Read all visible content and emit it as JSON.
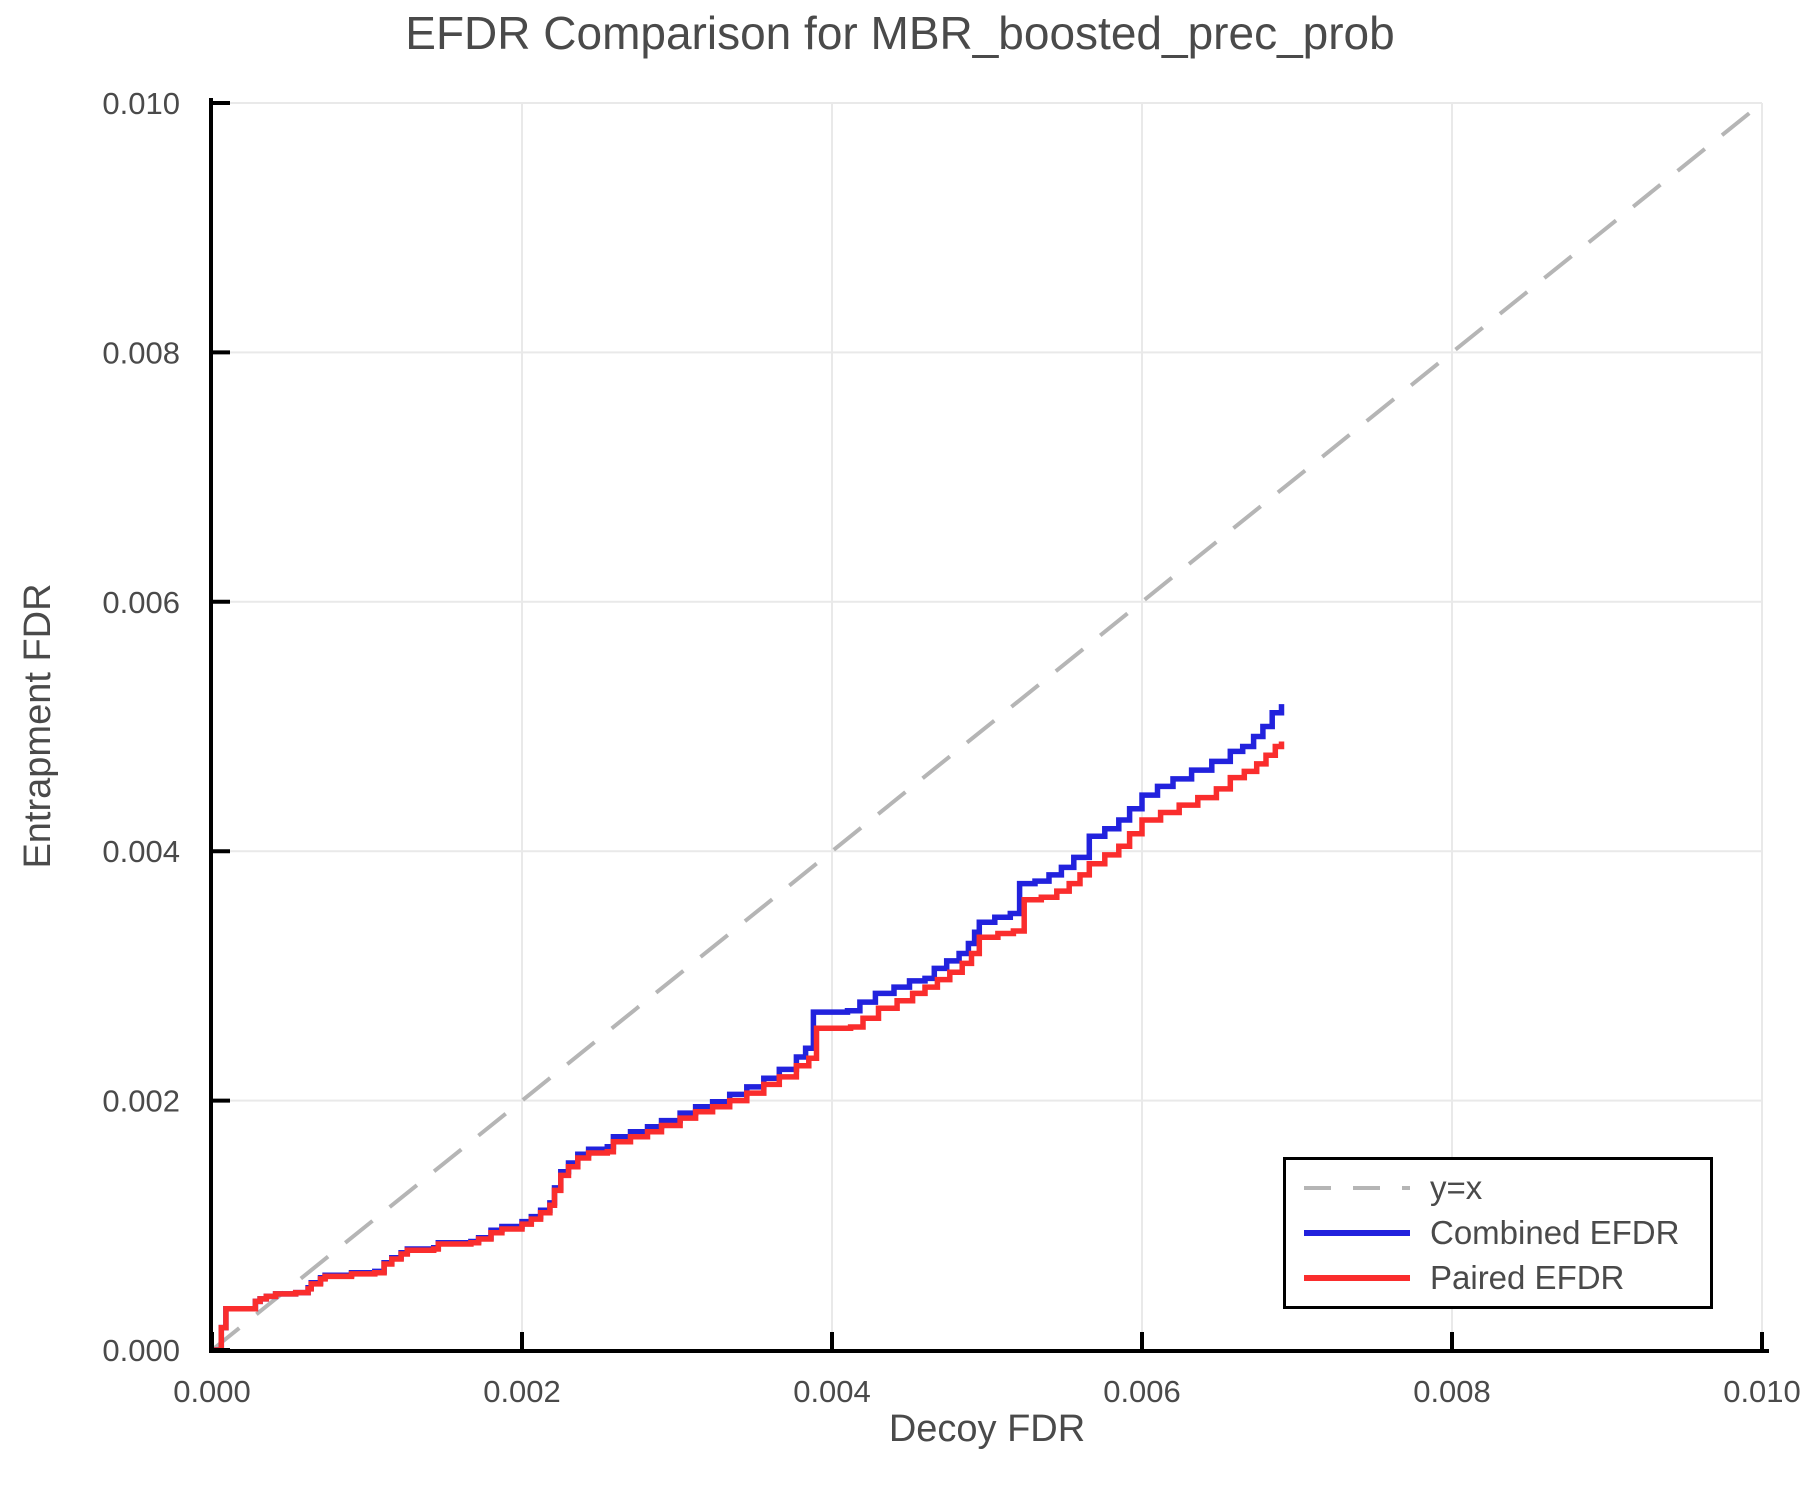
{
  "chart_data": {
    "type": "line",
    "title": "EFDR Comparison for MBR_boosted_prec_prob",
    "xlabel": "Decoy FDR",
    "ylabel": "Entrapment FDR",
    "xlim": [
      0.0,
      0.01
    ],
    "ylim": [
      0.0,
      0.01
    ],
    "x_ticks": [
      0.0,
      0.002,
      0.004,
      0.006,
      0.008,
      0.01
    ],
    "x_tick_labels": [
      "0.000",
      "0.002",
      "0.004",
      "0.006",
      "0.008",
      "0.010"
    ],
    "y_ticks": [
      0.0,
      0.002,
      0.004,
      0.006,
      0.008,
      0.01
    ],
    "y_tick_labels": [
      "0.000",
      "0.002",
      "0.004",
      "0.006",
      "0.008",
      "0.010"
    ],
    "grid": true,
    "grid_color": "#e9e9e9",
    "axis_color": "#000000",
    "tick_label_color": "#4a4a4a",
    "legend_position": "lower right",
    "reference_line": {
      "label": "y=x",
      "style": "dashed",
      "color": "#b5b5b5",
      "from": [
        0.0,
        0.0
      ],
      "to": [
        0.01,
        0.01
      ]
    },
    "series": [
      {
        "name": "Combined EFDR",
        "color": "#2222dd",
        "style": "step",
        "points": [
          [
            0.0,
            0.0
          ],
          [
            6e-05,
            0.0
          ],
          [
            6e-05,
            0.00018
          ],
          [
            9e-05,
            0.00018
          ],
          [
            9e-05,
            0.00033
          ],
          [
            0.00026,
            0.00033
          ],
          [
            0.00028,
            0.00039
          ],
          [
            0.00031,
            0.00041
          ],
          [
            0.00035,
            0.00043
          ],
          [
            0.00041,
            0.00045
          ],
          [
            0.00054,
            0.00046
          ],
          [
            0.00062,
            0.0005
          ],
          [
            0.00064,
            0.00054
          ],
          [
            0.0007,
            0.00058
          ],
          [
            0.00073,
            0.0006
          ],
          [
            0.0009,
            0.00062
          ],
          [
            0.00105,
            0.00063
          ],
          [
            0.00111,
            0.0007
          ],
          [
            0.00116,
            0.00074
          ],
          [
            0.00122,
            0.00078
          ],
          [
            0.00126,
            0.00081
          ],
          [
            0.00143,
            0.00082
          ],
          [
            0.00146,
            0.00086
          ],
          [
            0.00167,
            0.00087
          ],
          [
            0.00172,
            0.0009
          ],
          [
            0.0018,
            0.00096
          ],
          [
            0.00187,
            0.00099
          ],
          [
            0.002,
            0.00103
          ],
          [
            0.00206,
            0.00107
          ],
          [
            0.00212,
            0.00112
          ],
          [
            0.00218,
            0.00118
          ],
          [
            0.00221,
            0.0013
          ],
          [
            0.00225,
            0.00143
          ],
          [
            0.0023,
            0.0015
          ],
          [
            0.00236,
            0.00157
          ],
          [
            0.00243,
            0.00161
          ],
          [
            0.00255,
            0.00163
          ],
          [
            0.00259,
            0.00171
          ],
          [
            0.0027,
            0.00175
          ],
          [
            0.00281,
            0.00179
          ],
          [
            0.0029,
            0.00184
          ],
          [
            0.00302,
            0.0019
          ],
          [
            0.00312,
            0.00195
          ],
          [
            0.00323,
            0.00199
          ],
          [
            0.00334,
            0.00205
          ],
          [
            0.00345,
            0.00211
          ],
          [
            0.00356,
            0.00218
          ],
          [
            0.00366,
            0.00225
          ],
          [
            0.00377,
            0.00235
          ],
          [
            0.00383,
            0.00242
          ],
          [
            0.00388,
            0.00271
          ],
          [
            0.0041,
            0.00272
          ],
          [
            0.00418,
            0.00279
          ],
          [
            0.00428,
            0.00286
          ],
          [
            0.0044,
            0.00291
          ],
          [
            0.0045,
            0.00296
          ],
          [
            0.0046,
            0.00298
          ],
          [
            0.00466,
            0.00306
          ],
          [
            0.00474,
            0.00312
          ],
          [
            0.00482,
            0.00318
          ],
          [
            0.00488,
            0.00326
          ],
          [
            0.00492,
            0.00335
          ],
          [
            0.00495,
            0.00343
          ],
          [
            0.00505,
            0.00347
          ],
          [
            0.00515,
            0.0035
          ],
          [
            0.00521,
            0.00374
          ],
          [
            0.00531,
            0.00376
          ],
          [
            0.0054,
            0.00381
          ],
          [
            0.00548,
            0.00387
          ],
          [
            0.00556,
            0.00395
          ],
          [
            0.00566,
            0.00412
          ],
          [
            0.00576,
            0.00418
          ],
          [
            0.00585,
            0.00425
          ],
          [
            0.00592,
            0.00434
          ],
          [
            0.006,
            0.00445
          ],
          [
            0.0061,
            0.00452
          ],
          [
            0.0062,
            0.00458
          ],
          [
            0.00632,
            0.00465
          ],
          [
            0.00645,
            0.00472
          ],
          [
            0.00657,
            0.0048
          ],
          [
            0.00665,
            0.00484
          ],
          [
            0.00672,
            0.00492
          ],
          [
            0.00678,
            0.005
          ],
          [
            0.00684,
            0.00511
          ],
          [
            0.0069,
            0.00518
          ]
        ]
      },
      {
        "name": "Paired EFDR",
        "color": "#fa2d2d",
        "style": "step",
        "points": [
          [
            0.0,
            0.0
          ],
          [
            6e-05,
            0.0
          ],
          [
            6e-05,
            0.00018
          ],
          [
            9e-05,
            0.00018
          ],
          [
            9e-05,
            0.00033
          ],
          [
            0.00026,
            0.00033
          ],
          [
            0.00028,
            0.00039
          ],
          [
            0.00031,
            0.00041
          ],
          [
            0.00035,
            0.00043
          ],
          [
            0.00041,
            0.00045
          ],
          [
            0.00054,
            0.00046
          ],
          [
            0.00062,
            0.00049
          ],
          [
            0.00064,
            0.00053
          ],
          [
            0.0007,
            0.00057
          ],
          [
            0.00073,
            0.00059
          ],
          [
            0.0009,
            0.00061
          ],
          [
            0.00105,
            0.00062
          ],
          [
            0.00111,
            0.00069
          ],
          [
            0.00116,
            0.00073
          ],
          [
            0.00122,
            0.00077
          ],
          [
            0.00126,
            0.0008
          ],
          [
            0.00143,
            0.00081
          ],
          [
            0.00146,
            0.00085
          ],
          [
            0.00167,
            0.00086
          ],
          [
            0.00172,
            0.00089
          ],
          [
            0.0018,
            0.00094
          ],
          [
            0.00187,
            0.00097
          ],
          [
            0.002,
            0.00101
          ],
          [
            0.00206,
            0.00105
          ],
          [
            0.00212,
            0.0011
          ],
          [
            0.00218,
            0.00116
          ],
          [
            0.00221,
            0.00128
          ],
          [
            0.00225,
            0.0014
          ],
          [
            0.0023,
            0.00147
          ],
          [
            0.00236,
            0.00154
          ],
          [
            0.00243,
            0.00158
          ],
          [
            0.00255,
            0.00159
          ],
          [
            0.00259,
            0.00167
          ],
          [
            0.0027,
            0.00171
          ],
          [
            0.00281,
            0.00175
          ],
          [
            0.0029,
            0.0018
          ],
          [
            0.00302,
            0.00186
          ],
          [
            0.00312,
            0.00191
          ],
          [
            0.00323,
            0.00195
          ],
          [
            0.00334,
            0.002
          ],
          [
            0.00345,
            0.00206
          ],
          [
            0.00356,
            0.00213
          ],
          [
            0.00366,
            0.00219
          ],
          [
            0.00377,
            0.00228
          ],
          [
            0.00385,
            0.00234
          ],
          [
            0.0039,
            0.00258
          ],
          [
            0.00412,
            0.00259
          ],
          [
            0.0042,
            0.00266
          ],
          [
            0.0043,
            0.00274
          ],
          [
            0.00442,
            0.0028
          ],
          [
            0.00452,
            0.00286
          ],
          [
            0.0046,
            0.00291
          ],
          [
            0.00468,
            0.00297
          ],
          [
            0.00476,
            0.00303
          ],
          [
            0.00484,
            0.0031
          ],
          [
            0.0049,
            0.00318
          ],
          [
            0.00495,
            0.00331
          ],
          [
            0.00507,
            0.00334
          ],
          [
            0.00517,
            0.00336
          ],
          [
            0.00524,
            0.00361
          ],
          [
            0.00535,
            0.00363
          ],
          [
            0.00545,
            0.00368
          ],
          [
            0.00553,
            0.00374
          ],
          [
            0.0056,
            0.00381
          ],
          [
            0.00566,
            0.0039
          ],
          [
            0.00576,
            0.00397
          ],
          [
            0.00585,
            0.00404
          ],
          [
            0.00592,
            0.00414
          ],
          [
            0.006,
            0.00425
          ],
          [
            0.00612,
            0.00431
          ],
          [
            0.00624,
            0.00437
          ],
          [
            0.00636,
            0.00443
          ],
          [
            0.00648,
            0.0045
          ],
          [
            0.00657,
            0.00459
          ],
          [
            0.00666,
            0.00464
          ],
          [
            0.00674,
            0.0047
          ],
          [
            0.0068,
            0.00477
          ],
          [
            0.00686,
            0.00484
          ],
          [
            0.0069,
            0.00488
          ]
        ]
      }
    ]
  }
}
